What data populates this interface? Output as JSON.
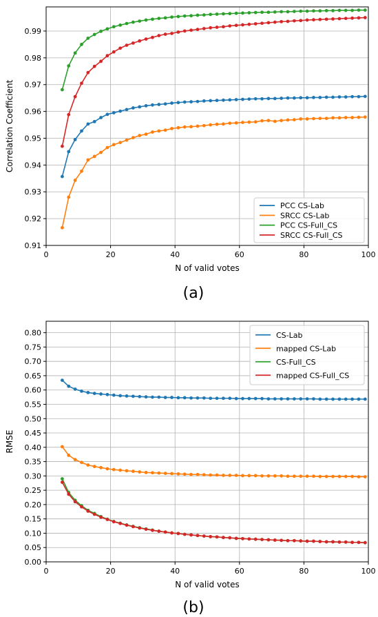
{
  "chart_data": [
    {
      "type": "line",
      "caption": "(a)",
      "xlabel": "N of valid votes",
      "ylabel": "Correlation Coefficient",
      "xlim": [
        0,
        100
      ],
      "ylim": [
        0.91,
        0.999
      ],
      "x_ticks": [
        0,
        20,
        40,
        60,
        80,
        100
      ],
      "y_ticks": [
        0.91,
        0.92,
        0.93,
        0.94,
        0.95,
        0.96,
        0.97,
        0.98,
        0.99
      ],
      "y_decimals": 2,
      "grid": true,
      "legend_position": "lower-right",
      "x": [
        5,
        7,
        9,
        11,
        13,
        15,
        17,
        19,
        21,
        23,
        25,
        27,
        29,
        31,
        33,
        35,
        37,
        39,
        41,
        43,
        45,
        47,
        49,
        51,
        53,
        55,
        57,
        59,
        61,
        63,
        65,
        67,
        69,
        71,
        73,
        75,
        77,
        79,
        81,
        83,
        85,
        87,
        89,
        91,
        93,
        95,
        97,
        99
      ],
      "series": [
        {
          "name": "PCC CS-Lab",
          "color": "#1f77b4",
          "values": [
            0.9357,
            0.945,
            0.9495,
            0.9527,
            0.9553,
            0.9562,
            0.9577,
            0.9589,
            0.9595,
            0.9601,
            0.9607,
            0.9613,
            0.9617,
            0.9621,
            0.9624,
            0.9626,
            0.9628,
            0.9631,
            0.9633,
            0.9635,
            0.9636,
            0.9637,
            0.9639,
            0.964,
            0.9641,
            0.9642,
            0.9643,
            0.9644,
            0.9645,
            0.9646,
            0.9647,
            0.9647,
            0.9648,
            0.9648,
            0.9649,
            0.965,
            0.965,
            0.9651,
            0.9651,
            0.9652,
            0.9652,
            0.9653,
            0.9653,
            0.9654,
            0.9654,
            0.9655,
            0.9655,
            0.9656
          ]
        },
        {
          "name": "SRCC CS-Lab",
          "color": "#ff7f0e",
          "values": [
            0.9166,
            0.928,
            0.9343,
            0.9377,
            0.9419,
            0.9432,
            0.9447,
            0.9465,
            0.9476,
            0.9484,
            0.9493,
            0.9502,
            0.951,
            0.9515,
            0.9523,
            0.9527,
            0.953,
            0.9536,
            0.9539,
            0.9542,
            0.9543,
            0.9545,
            0.9547,
            0.955,
            0.9552,
            0.9553,
            0.9556,
            0.9557,
            0.9559,
            0.956,
            0.9561,
            0.9565,
            0.9566,
            0.9563,
            0.9566,
            0.9568,
            0.9569,
            0.9572,
            0.9572,
            0.9573,
            0.9574,
            0.9574,
            0.9576,
            0.9576,
            0.9577,
            0.9577,
            0.9578,
            0.9579
          ]
        },
        {
          "name": "PCC CS-Full_CS",
          "color": "#2ca02c",
          "values": [
            0.9681,
            0.977,
            0.9818,
            0.985,
            0.9873,
            0.9887,
            0.9899,
            0.9908,
            0.9916,
            0.9922,
            0.9928,
            0.9933,
            0.9937,
            0.9941,
            0.9944,
            0.9947,
            0.9949,
            0.9952,
            0.9954,
            0.9956,
            0.9957,
            0.9959,
            0.996,
            0.9962,
            0.9963,
            0.9964,
            0.9965,
            0.9966,
            0.9967,
            0.9968,
            0.9969,
            0.997,
            0.997,
            0.9971,
            0.9972,
            0.9972,
            0.9973,
            0.9974,
            0.9974,
            0.9975,
            0.9975,
            0.9976,
            0.9976,
            0.9977,
            0.9977,
            0.9977,
            0.9978,
            0.9978
          ]
        },
        {
          "name": "SRCC CS-Full_CS",
          "color": "#d62728",
          "values": [
            0.947,
            0.9588,
            0.9655,
            0.9705,
            0.9745,
            0.9768,
            0.9787,
            0.9808,
            0.9822,
            0.9836,
            0.9847,
            0.9855,
            0.9863,
            0.987,
            0.9876,
            0.9883,
            0.9888,
            0.9891,
            0.9896,
            0.99,
            0.9903,
            0.9906,
            0.9909,
            0.9912,
            0.9914,
            0.9916,
            0.9919,
            0.9921,
            0.9923,
            0.9925,
            0.9927,
            0.9929,
            0.9931,
            0.9933,
            0.9935,
            0.9936,
            0.9938,
            0.9939,
            0.9941,
            0.9942,
            0.9943,
            0.9944,
            0.9945,
            0.9946,
            0.9947,
            0.9948,
            0.9949,
            0.995
          ]
        }
      ]
    },
    {
      "type": "line",
      "caption": "(b)",
      "xlabel": "N of valid votes",
      "ylabel": "RMSE",
      "xlim": [
        0,
        100
      ],
      "ylim": [
        0,
        0.84
      ],
      "x_ticks": [
        0,
        20,
        40,
        60,
        80,
        100
      ],
      "y_ticks": [
        0.0,
        0.05,
        0.1,
        0.15,
        0.2,
        0.25,
        0.3,
        0.35,
        0.4,
        0.45,
        0.5,
        0.55,
        0.6,
        0.65,
        0.7,
        0.75,
        0.8
      ],
      "y_decimals": 2,
      "grid": true,
      "legend_position": "top-right",
      "x": [
        5,
        7,
        9,
        11,
        13,
        15,
        17,
        19,
        21,
        23,
        25,
        27,
        29,
        31,
        33,
        35,
        37,
        39,
        41,
        43,
        45,
        47,
        49,
        51,
        53,
        55,
        57,
        59,
        61,
        63,
        65,
        67,
        69,
        71,
        73,
        75,
        77,
        79,
        81,
        83,
        85,
        87,
        89,
        91,
        93,
        95,
        97,
        99
      ],
      "series": [
        {
          "name": "CS-Lab",
          "color": "#1f77b4",
          "values": [
            0.634,
            0.613,
            0.603,
            0.596,
            0.591,
            0.588,
            0.586,
            0.584,
            0.582,
            0.58,
            0.579,
            0.578,
            0.577,
            0.576,
            0.575,
            0.575,
            0.574,
            0.574,
            0.573,
            0.573,
            0.572,
            0.572,
            0.572,
            0.571,
            0.571,
            0.571,
            0.571,
            0.57,
            0.57,
            0.57,
            0.57,
            0.57,
            0.569,
            0.569,
            0.569,
            0.569,
            0.569,
            0.569,
            0.569,
            0.569,
            0.568,
            0.568,
            0.568,
            0.568,
            0.568,
            0.568,
            0.568,
            0.568
          ]
        },
        {
          "name": "mapped CS-Lab",
          "color": "#ff7f0e",
          "values": [
            0.402,
            0.372,
            0.357,
            0.347,
            0.338,
            0.333,
            0.329,
            0.325,
            0.322,
            0.32,
            0.318,
            0.316,
            0.314,
            0.312,
            0.311,
            0.31,
            0.309,
            0.308,
            0.307,
            0.306,
            0.305,
            0.305,
            0.304,
            0.303,
            0.303,
            0.302,
            0.302,
            0.302,
            0.301,
            0.301,
            0.301,
            0.3,
            0.3,
            0.3,
            0.3,
            0.299,
            0.299,
            0.299,
            0.299,
            0.299,
            0.298,
            0.298,
            0.298,
            0.298,
            0.298,
            0.298,
            0.297,
            0.297
          ]
        },
        {
          "name": "CS-Full_CS",
          "color": "#2ca02c",
          "values": [
            0.29,
            0.242,
            0.215,
            0.196,
            0.18,
            0.169,
            0.158,
            0.149,
            0.141,
            0.135,
            0.129,
            0.124,
            0.119,
            0.115,
            0.111,
            0.107,
            0.104,
            0.101,
            0.099,
            0.096,
            0.094,
            0.092,
            0.09,
            0.088,
            0.087,
            0.085,
            0.084,
            0.082,
            0.081,
            0.08,
            0.079,
            0.078,
            0.077,
            0.076,
            0.075,
            0.074,
            0.074,
            0.073,
            0.072,
            0.072,
            0.071,
            0.07,
            0.07,
            0.069,
            0.069,
            0.068,
            0.068,
            0.067
          ]
        },
        {
          "name": "mapped CS-Full_CS",
          "color": "#d62728",
          "values": [
            0.278,
            0.236,
            0.21,
            0.192,
            0.177,
            0.166,
            0.156,
            0.148,
            0.14,
            0.134,
            0.128,
            0.123,
            0.118,
            0.114,
            0.11,
            0.107,
            0.104,
            0.101,
            0.099,
            0.096,
            0.094,
            0.092,
            0.09,
            0.088,
            0.087,
            0.085,
            0.084,
            0.082,
            0.081,
            0.08,
            0.079,
            0.078,
            0.077,
            0.076,
            0.075,
            0.074,
            0.074,
            0.073,
            0.072,
            0.072,
            0.071,
            0.07,
            0.07,
            0.069,
            0.069,
            0.068,
            0.068,
            0.067
          ]
        }
      ]
    }
  ]
}
